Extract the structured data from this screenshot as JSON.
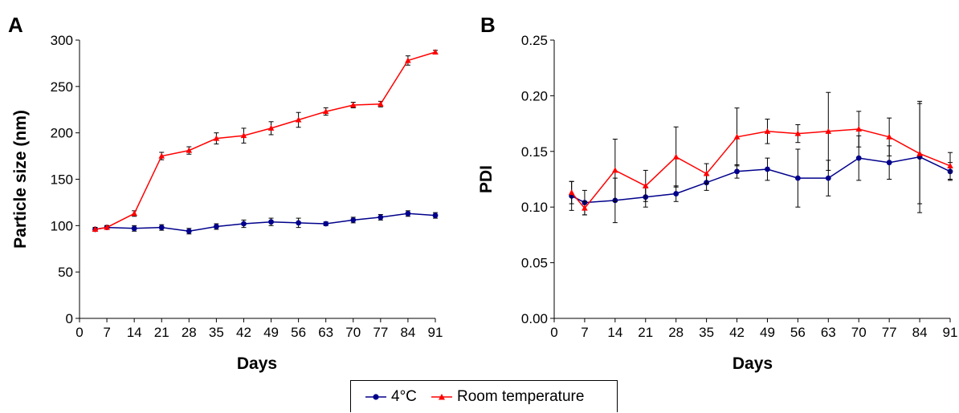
{
  "chart_data": [
    {
      "type": "line",
      "panel_label": "A",
      "xlabel": "Days",
      "ylabel": "Particle size (nm)",
      "xlim": [
        0,
        91
      ],
      "ylim": [
        0,
        300
      ],
      "x_ticks": [
        0,
        7,
        14,
        21,
        28,
        35,
        42,
        49,
        56,
        63,
        70,
        77,
        84,
        91
      ],
      "y_ticks": [
        0,
        50,
        100,
        150,
        200,
        250,
        300
      ],
      "y_tick_labels": [
        "0",
        "50",
        "100",
        "150",
        "200",
        "250",
        "300"
      ],
      "x": [
        4,
        7,
        14,
        21,
        28,
        35,
        42,
        49,
        56,
        63,
        70,
        77,
        84,
        91
      ],
      "series": [
        {
          "name": "4°C",
          "color": "#00008B",
          "marker": "circle",
          "values": [
            96,
            98,
            97,
            98,
            94,
            99,
            102,
            104,
            103,
            102,
            106,
            109,
            113,
            111
          ],
          "errors": [
            2,
            2,
            3,
            3,
            3,
            3,
            4,
            4,
            5,
            2,
            3,
            3,
            3,
            3
          ]
        },
        {
          "name": "Room temperature",
          "color": "#FF0000",
          "marker": "triangle",
          "values": [
            96,
            98,
            113,
            175,
            181,
            194,
            197,
            205,
            214,
            223,
            230,
            231,
            278,
            287
          ],
          "errors": [
            2,
            2,
            3,
            4,
            4,
            6,
            8,
            7,
            8,
            4,
            3,
            3,
            5,
            2
          ]
        }
      ]
    },
    {
      "type": "line",
      "panel_label": "B",
      "xlabel": "Days",
      "ylabel": "PDI",
      "xlim": [
        0,
        91
      ],
      "ylim": [
        0,
        0.25
      ],
      "x_ticks": [
        0,
        7,
        14,
        21,
        28,
        35,
        42,
        49,
        56,
        63,
        70,
        77,
        84,
        91
      ],
      "y_ticks": [
        0,
        0.05,
        0.1,
        0.15,
        0.2,
        0.25
      ],
      "y_tick_labels": [
        "0.00",
        "0.05",
        "0.10",
        "0.15",
        "0.20",
        "0.25"
      ],
      "x": [
        4,
        7,
        14,
        21,
        28,
        35,
        42,
        49,
        56,
        63,
        70,
        77,
        84,
        91
      ],
      "series": [
        {
          "name": "4°C",
          "color": "#00008B",
          "marker": "circle",
          "values": [
            0.11,
            0.104,
            0.106,
            0.109,
            0.112,
            0.122,
            0.132,
            0.134,
            0.126,
            0.126,
            0.144,
            0.14,
            0.145,
            0.132
          ],
          "errors": [
            0.013,
            0.011,
            0.02,
            0.009,
            0.007,
            0.007,
            0.006,
            0.01,
            0.026,
            0.016,
            0.02,
            0.015,
            0.05,
            0.008
          ]
        },
        {
          "name": "Room temperature",
          "color": "#FF0000",
          "marker": "triangle",
          "values": [
            0.113,
            0.099,
            0.133,
            0.119,
            0.145,
            0.13,
            0.163,
            0.168,
            0.166,
            0.168,
            0.17,
            0.163,
            0.148,
            0.137
          ],
          "errors": [
            0.01,
            0.006,
            0.028,
            0.014,
            0.027,
            0.009,
            0.026,
            0.011,
            0.008,
            0.035,
            0.016,
            0.017,
            0.045,
            0.012
          ]
        }
      ]
    }
  ],
  "legend": {
    "items": [
      {
        "label": "4°C",
        "color": "#00008B",
        "marker": "circle"
      },
      {
        "label": "Room temperature",
        "color": "#FF0000",
        "marker": "triangle"
      }
    ]
  }
}
